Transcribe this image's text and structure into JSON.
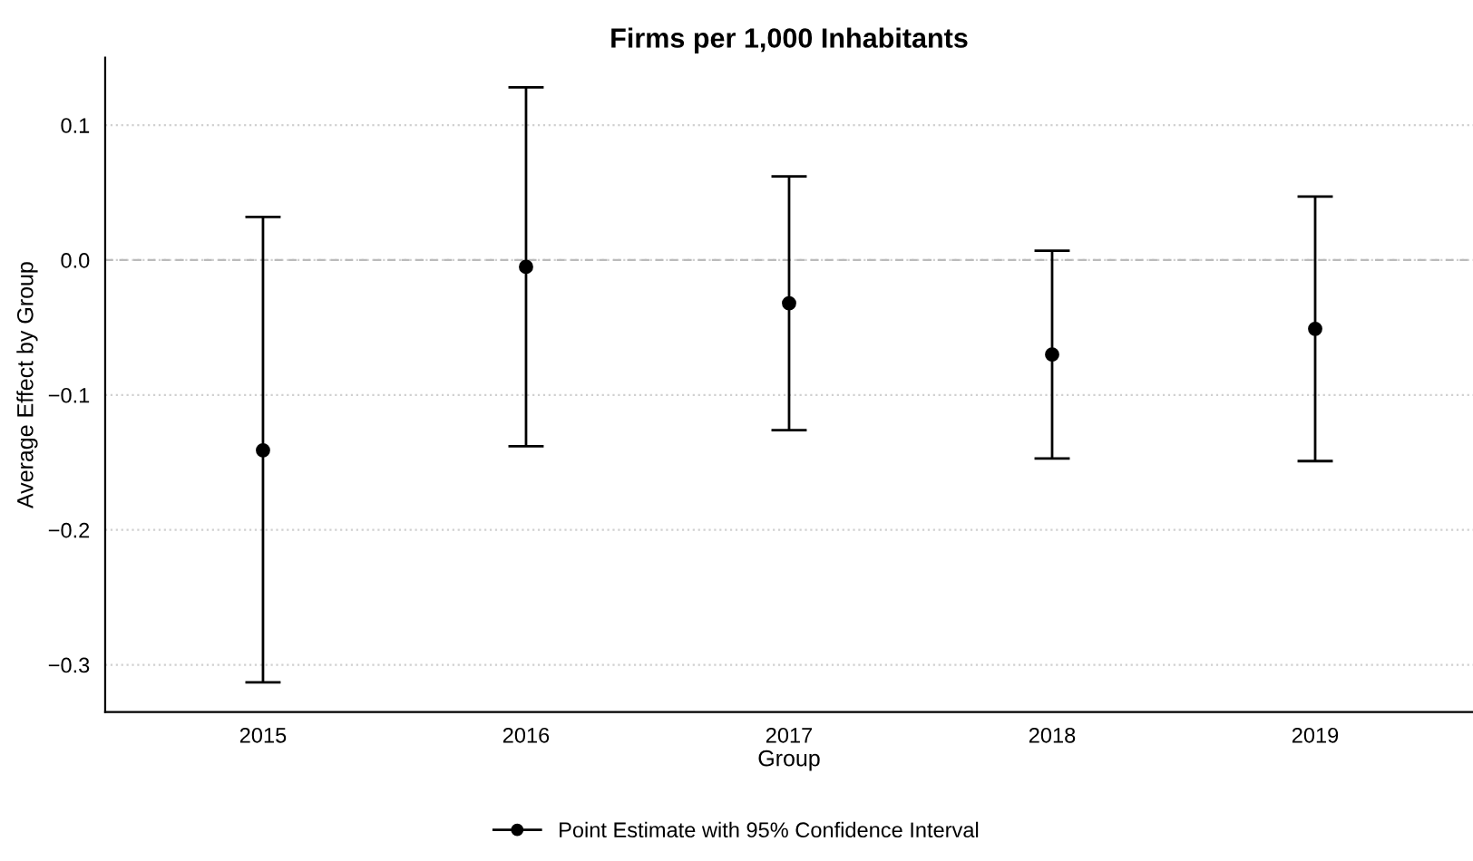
{
  "chart_data": {
    "type": "scatter",
    "title": "Firms per 1,000 Inhabitants",
    "xlabel": "Group",
    "ylabel": "Average Effect by Group",
    "x": [
      2015,
      2016,
      2017,
      2018,
      2019
    ],
    "series": [
      {
        "name": "Point Estimate with 95% Confidence Interval",
        "color": "#000000",
        "values": [
          -0.141,
          -0.005,
          -0.032,
          -0.07,
          -0.051
        ],
        "errors": [
          [
            -0.313,
            0.032
          ],
          [
            -0.138,
            0.128
          ],
          [
            -0.126,
            0.062
          ],
          [
            -0.147,
            0.007
          ],
          [
            -0.149,
            0.047
          ]
        ]
      }
    ],
    "xlim": [
      2014.4,
      2019.6
    ],
    "xticks": [
      2015,
      2016,
      2017,
      2018,
      2019
    ],
    "ylim": [
      -0.335,
      0.15
    ],
    "yticks": [
      {
        "value": -0.3,
        "label": "−0.3"
      },
      {
        "value": -0.2,
        "label": "−0.2"
      },
      {
        "value": -0.1,
        "label": "−0.1"
      },
      {
        "value": 0.0,
        "label": "0.0"
      },
      {
        "value": 0.1,
        "label": "0.1"
      }
    ],
    "ref_lines": [
      {
        "axis": "y",
        "value": 0.0,
        "color": "#bbbbbb",
        "line_style": "dashed"
      }
    ],
    "grid": "y",
    "legend": "bottom",
    "marker": "circle"
  }
}
